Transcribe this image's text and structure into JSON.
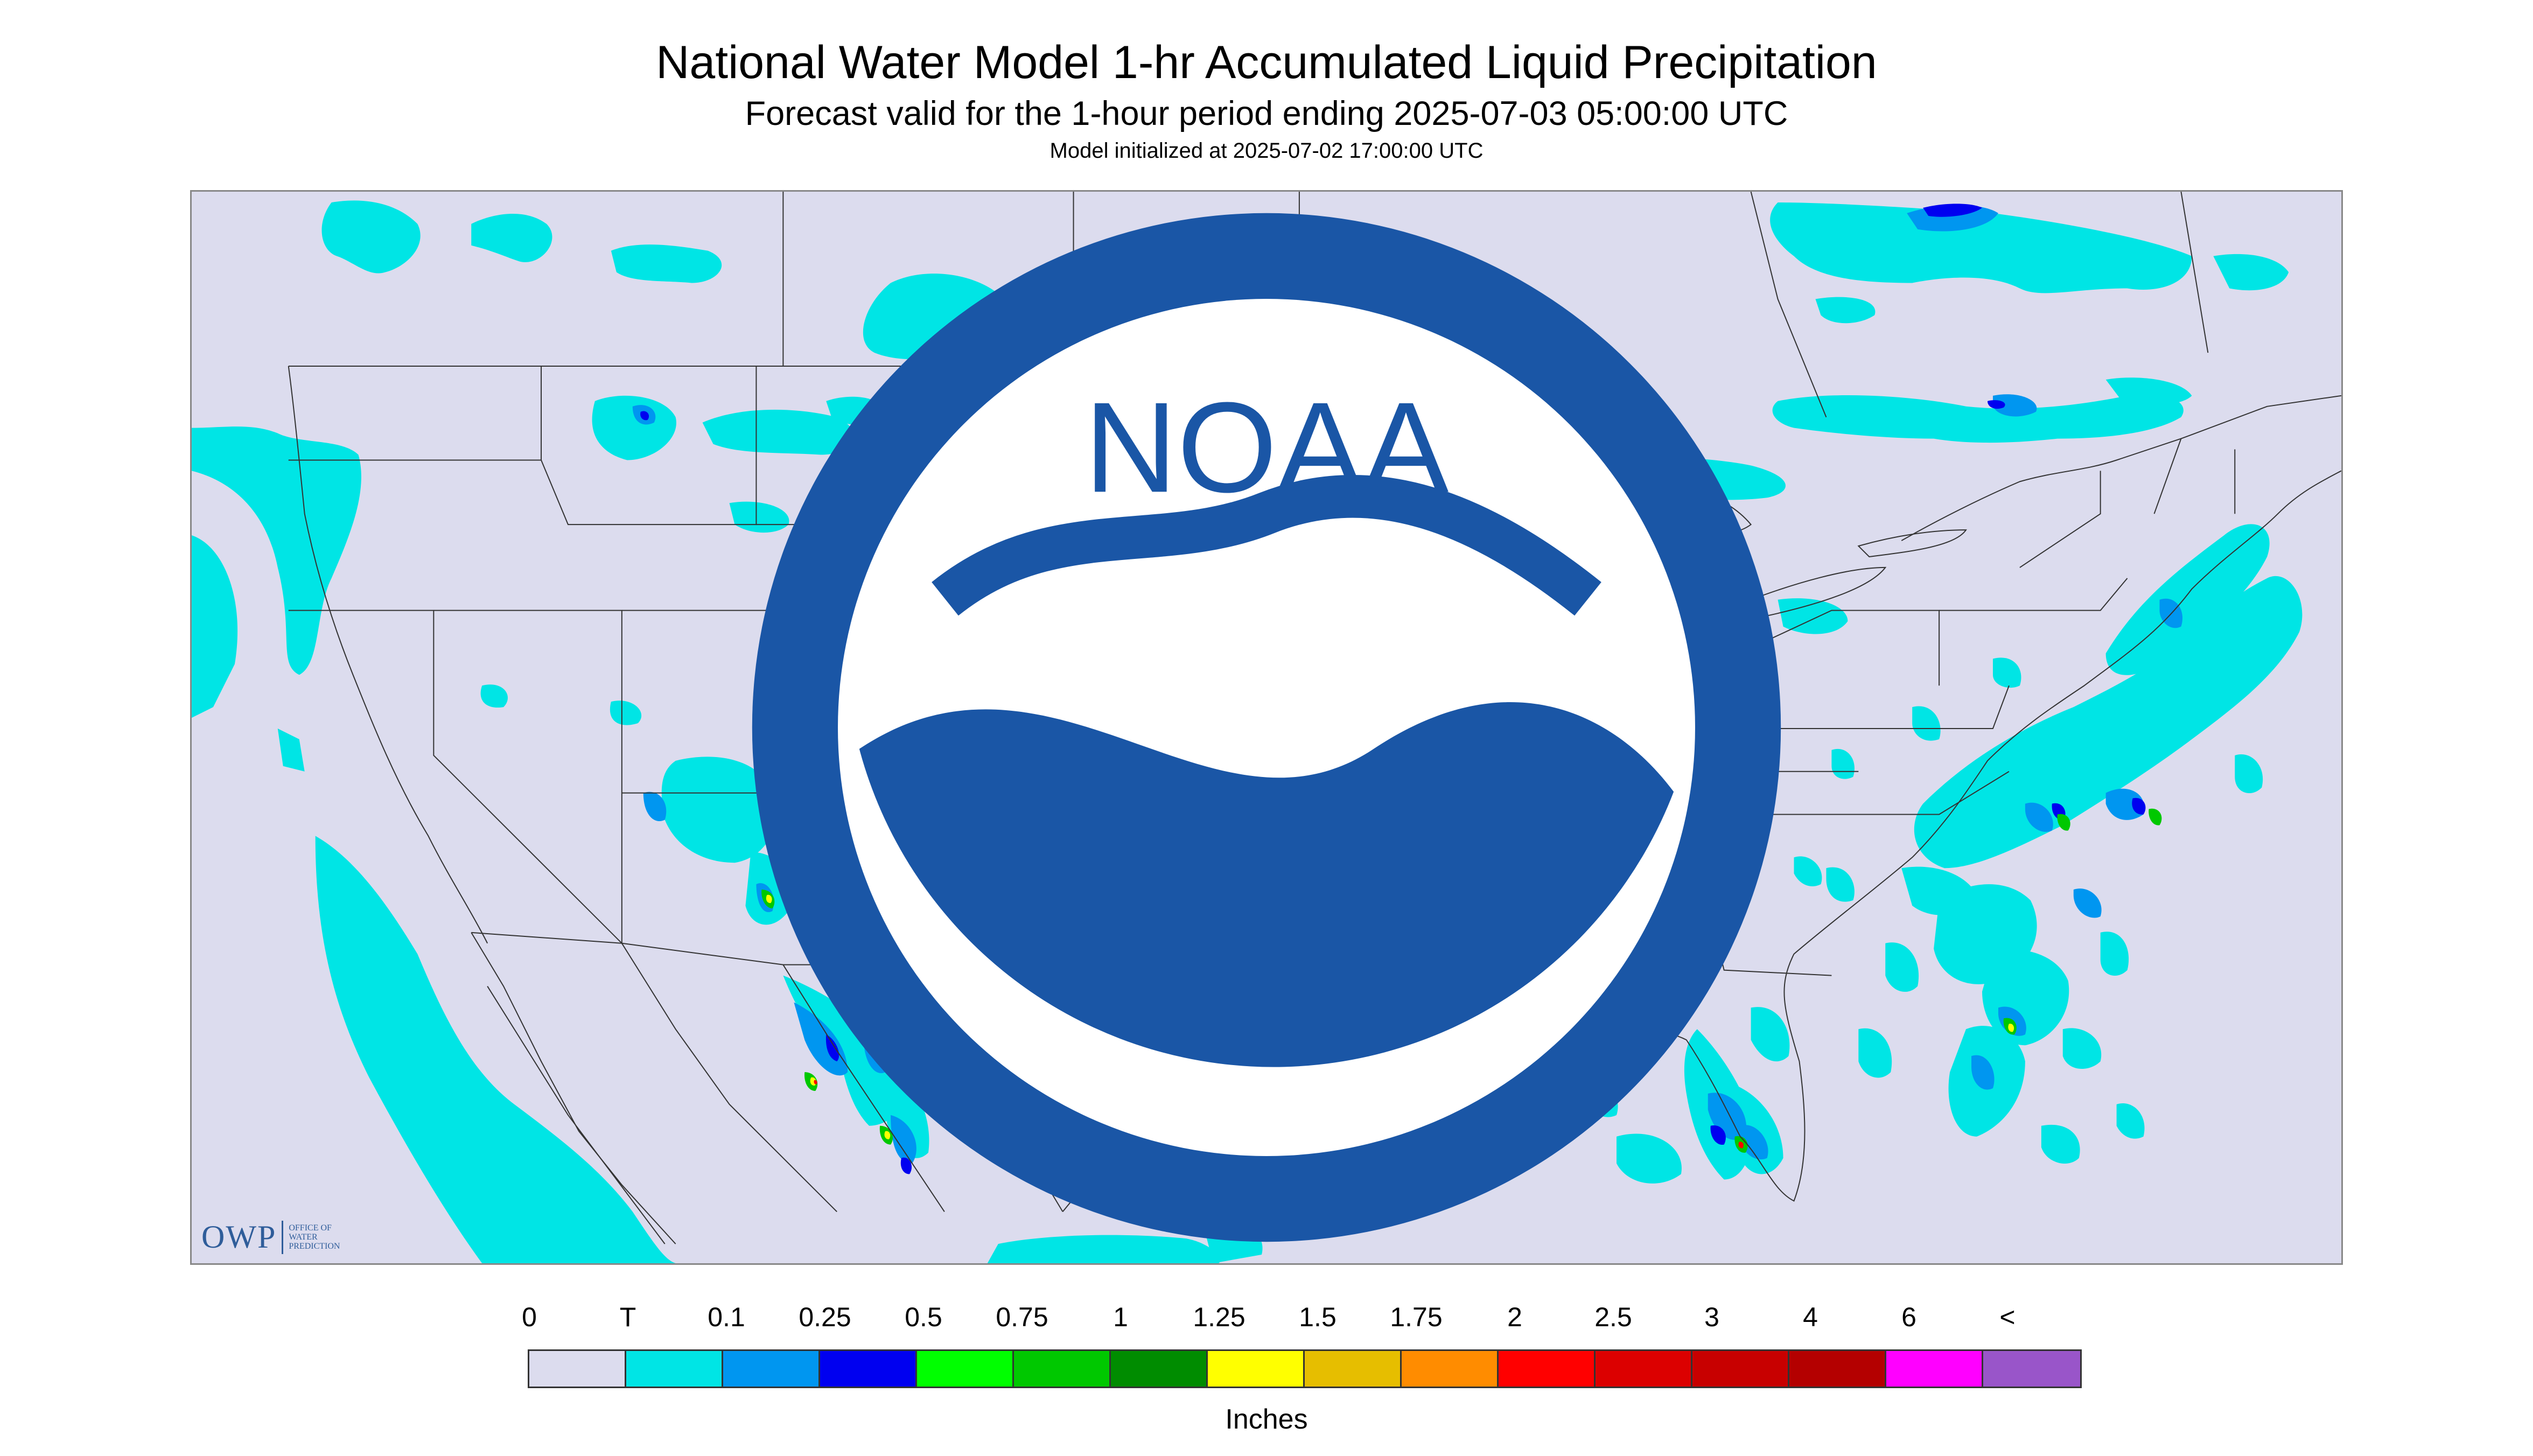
{
  "header": {
    "title": "National Water Model 1-hr Accumulated Liquid Precipitation",
    "subtitle": "Forecast valid for the 1-hour period ending 2025-07-03 05:00:00 UTC",
    "init": "Model initialized at 2025-07-02 17:00:00 UTC"
  },
  "logos": {
    "owp_mark": "OWP",
    "owp_text_1": "OFFICE OF",
    "owp_text_2": "WATER",
    "owp_text_3": "PREDICTION",
    "noaa_text": "NOAA"
  },
  "legend": {
    "labels": [
      "0",
      "T",
      "0.1",
      "0.25",
      "0.5",
      "0.75",
      "1",
      "1.25",
      "1.5",
      "1.75",
      "2",
      "2.5",
      "3",
      "4",
      "6",
      "<"
    ],
    "colors": [
      "#dcdcee",
      "#00e5e5",
      "#0096f0",
      "#0000f0",
      "#00ff00",
      "#00c800",
      "#008c00",
      "#ffff00",
      "#e6be00",
      "#ff8c00",
      "#ff0000",
      "#dc0000",
      "#c80000",
      "#b40000",
      "#ff00ff",
      "#9955c9"
    ],
    "units": "Inches"
  },
  "map_colors": {
    "background": "#dcdcee",
    "trace": "#00e5e5",
    "light": "#0096f0",
    "moderate": "#0000f0",
    "heavy": "#00c800",
    "very_heavy": "#ffff00",
    "extreme": "#ff0000",
    "boundary": "#333333"
  }
}
